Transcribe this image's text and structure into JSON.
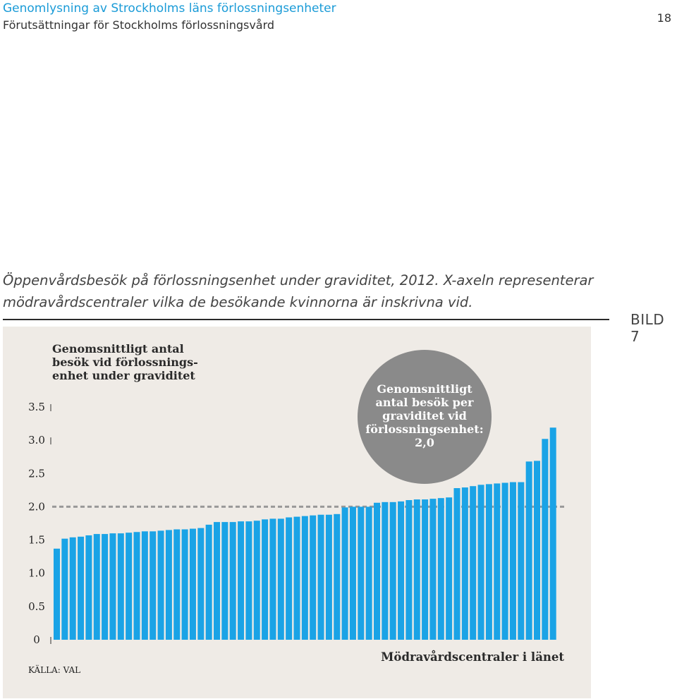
{
  "header": {
    "title": "Genomlysning av Strockholms läns förlossningsenheter",
    "subtitle": "Förutsättningar för Stockholms förlossningsvård",
    "page_number": "18"
  },
  "figure": {
    "caption": "Öppenvårdsbesök på förlossningsenhet under graviditet, 2012. X-axeln representerar mödravårdscentraler vilka de besökande kvinnorna är inskrivna vid.",
    "label": "BILD 7"
  },
  "chart_data": {
    "type": "bar",
    "title": "Genomsnittligt antal besök vid förlossnings-enhet under graviditet",
    "title_lines": [
      "Genomsnittligt antal",
      "besök vid förlossnings-",
      "enhet under graviditet"
    ],
    "xlabel": "Mödravårdscentraler i länet",
    "ylim": [
      0,
      3.5
    ],
    "yticks": [
      "0",
      "0.5",
      "1.0",
      "1.5",
      "2.0",
      "2.5",
      "3.0",
      "3.5"
    ],
    "ytick_values": [
      0,
      0.5,
      1.0,
      1.5,
      2.0,
      2.5,
      3.0,
      3.5
    ],
    "bar_color": "#1aa3e6",
    "reference_line": 2.0,
    "reference_line_color": "#999999",
    "annotation_lines": [
      "Genomsnittligt",
      "antal besök per",
      "graviditet vid",
      "förlossningsenhet:",
      "2,0"
    ],
    "annotation_color": "#8a8a8a",
    "source": "KÄLLA: VAL",
    "values": [
      1.37,
      1.52,
      1.54,
      1.55,
      1.57,
      1.59,
      1.59,
      1.6,
      1.6,
      1.61,
      1.62,
      1.63,
      1.63,
      1.64,
      1.65,
      1.66,
      1.66,
      1.67,
      1.68,
      1.73,
      1.77,
      1.77,
      1.77,
      1.78,
      1.78,
      1.79,
      1.81,
      1.82,
      1.82,
      1.84,
      1.85,
      1.86,
      1.87,
      1.88,
      1.88,
      1.89,
      1.99,
      2.0,
      2.0,
      2.0,
      2.06,
      2.07,
      2.07,
      2.08,
      2.1,
      2.11,
      2.11,
      2.12,
      2.13,
      2.14,
      2.28,
      2.29,
      2.31,
      2.33,
      2.34,
      2.35,
      2.36,
      2.37,
      2.37,
      2.68,
      2.69,
      3.02,
      3.19
    ]
  }
}
